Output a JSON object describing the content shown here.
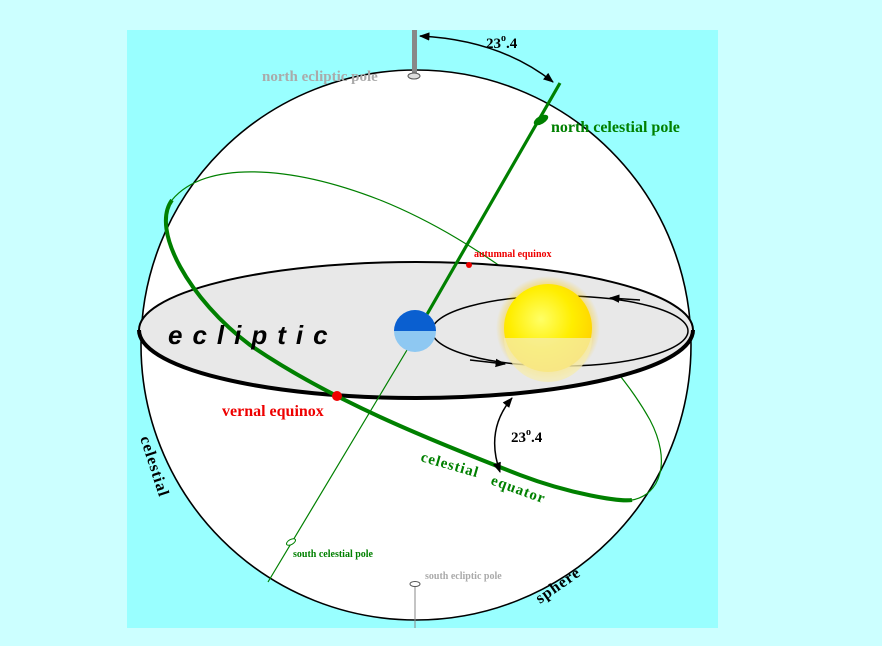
{
  "labels": {
    "north_ecliptic_pole": "north ecliptic pole",
    "north_celestial_pole": "north celestial pole",
    "autumnal_equinox": "autumnal equinox",
    "ecliptic": "ecliptic",
    "vernal_equinox": "vernal equinox",
    "celestial_equator_1": "celestial",
    "celestial_equator_2": "equator",
    "celestial_sphere_1": "celestial",
    "celestial_sphere_2": "sphere",
    "south_celestial_pole": "south celestial pole",
    "south_ecliptic_pole": "south ecliptic pole",
    "tilt_top_main": "23",
    "tilt_top_sup": "o",
    "tilt_top_dec": ".4",
    "tilt_side_main": "23",
    "tilt_side_sup": "o",
    "tilt_side_dec": ".4"
  },
  "colors": {
    "outer_background": "#ccffff",
    "panel_background": "#99ffff",
    "sphere_fill": "#ffffff",
    "ecliptic_plane": "#e5e5e5",
    "celestial_green": "#008000",
    "equinox_red": "#ee0000",
    "pole_grey": "#aaaaaa",
    "earth_blue": "#0a6fe0",
    "sun_yellow": "#ffee00"
  }
}
